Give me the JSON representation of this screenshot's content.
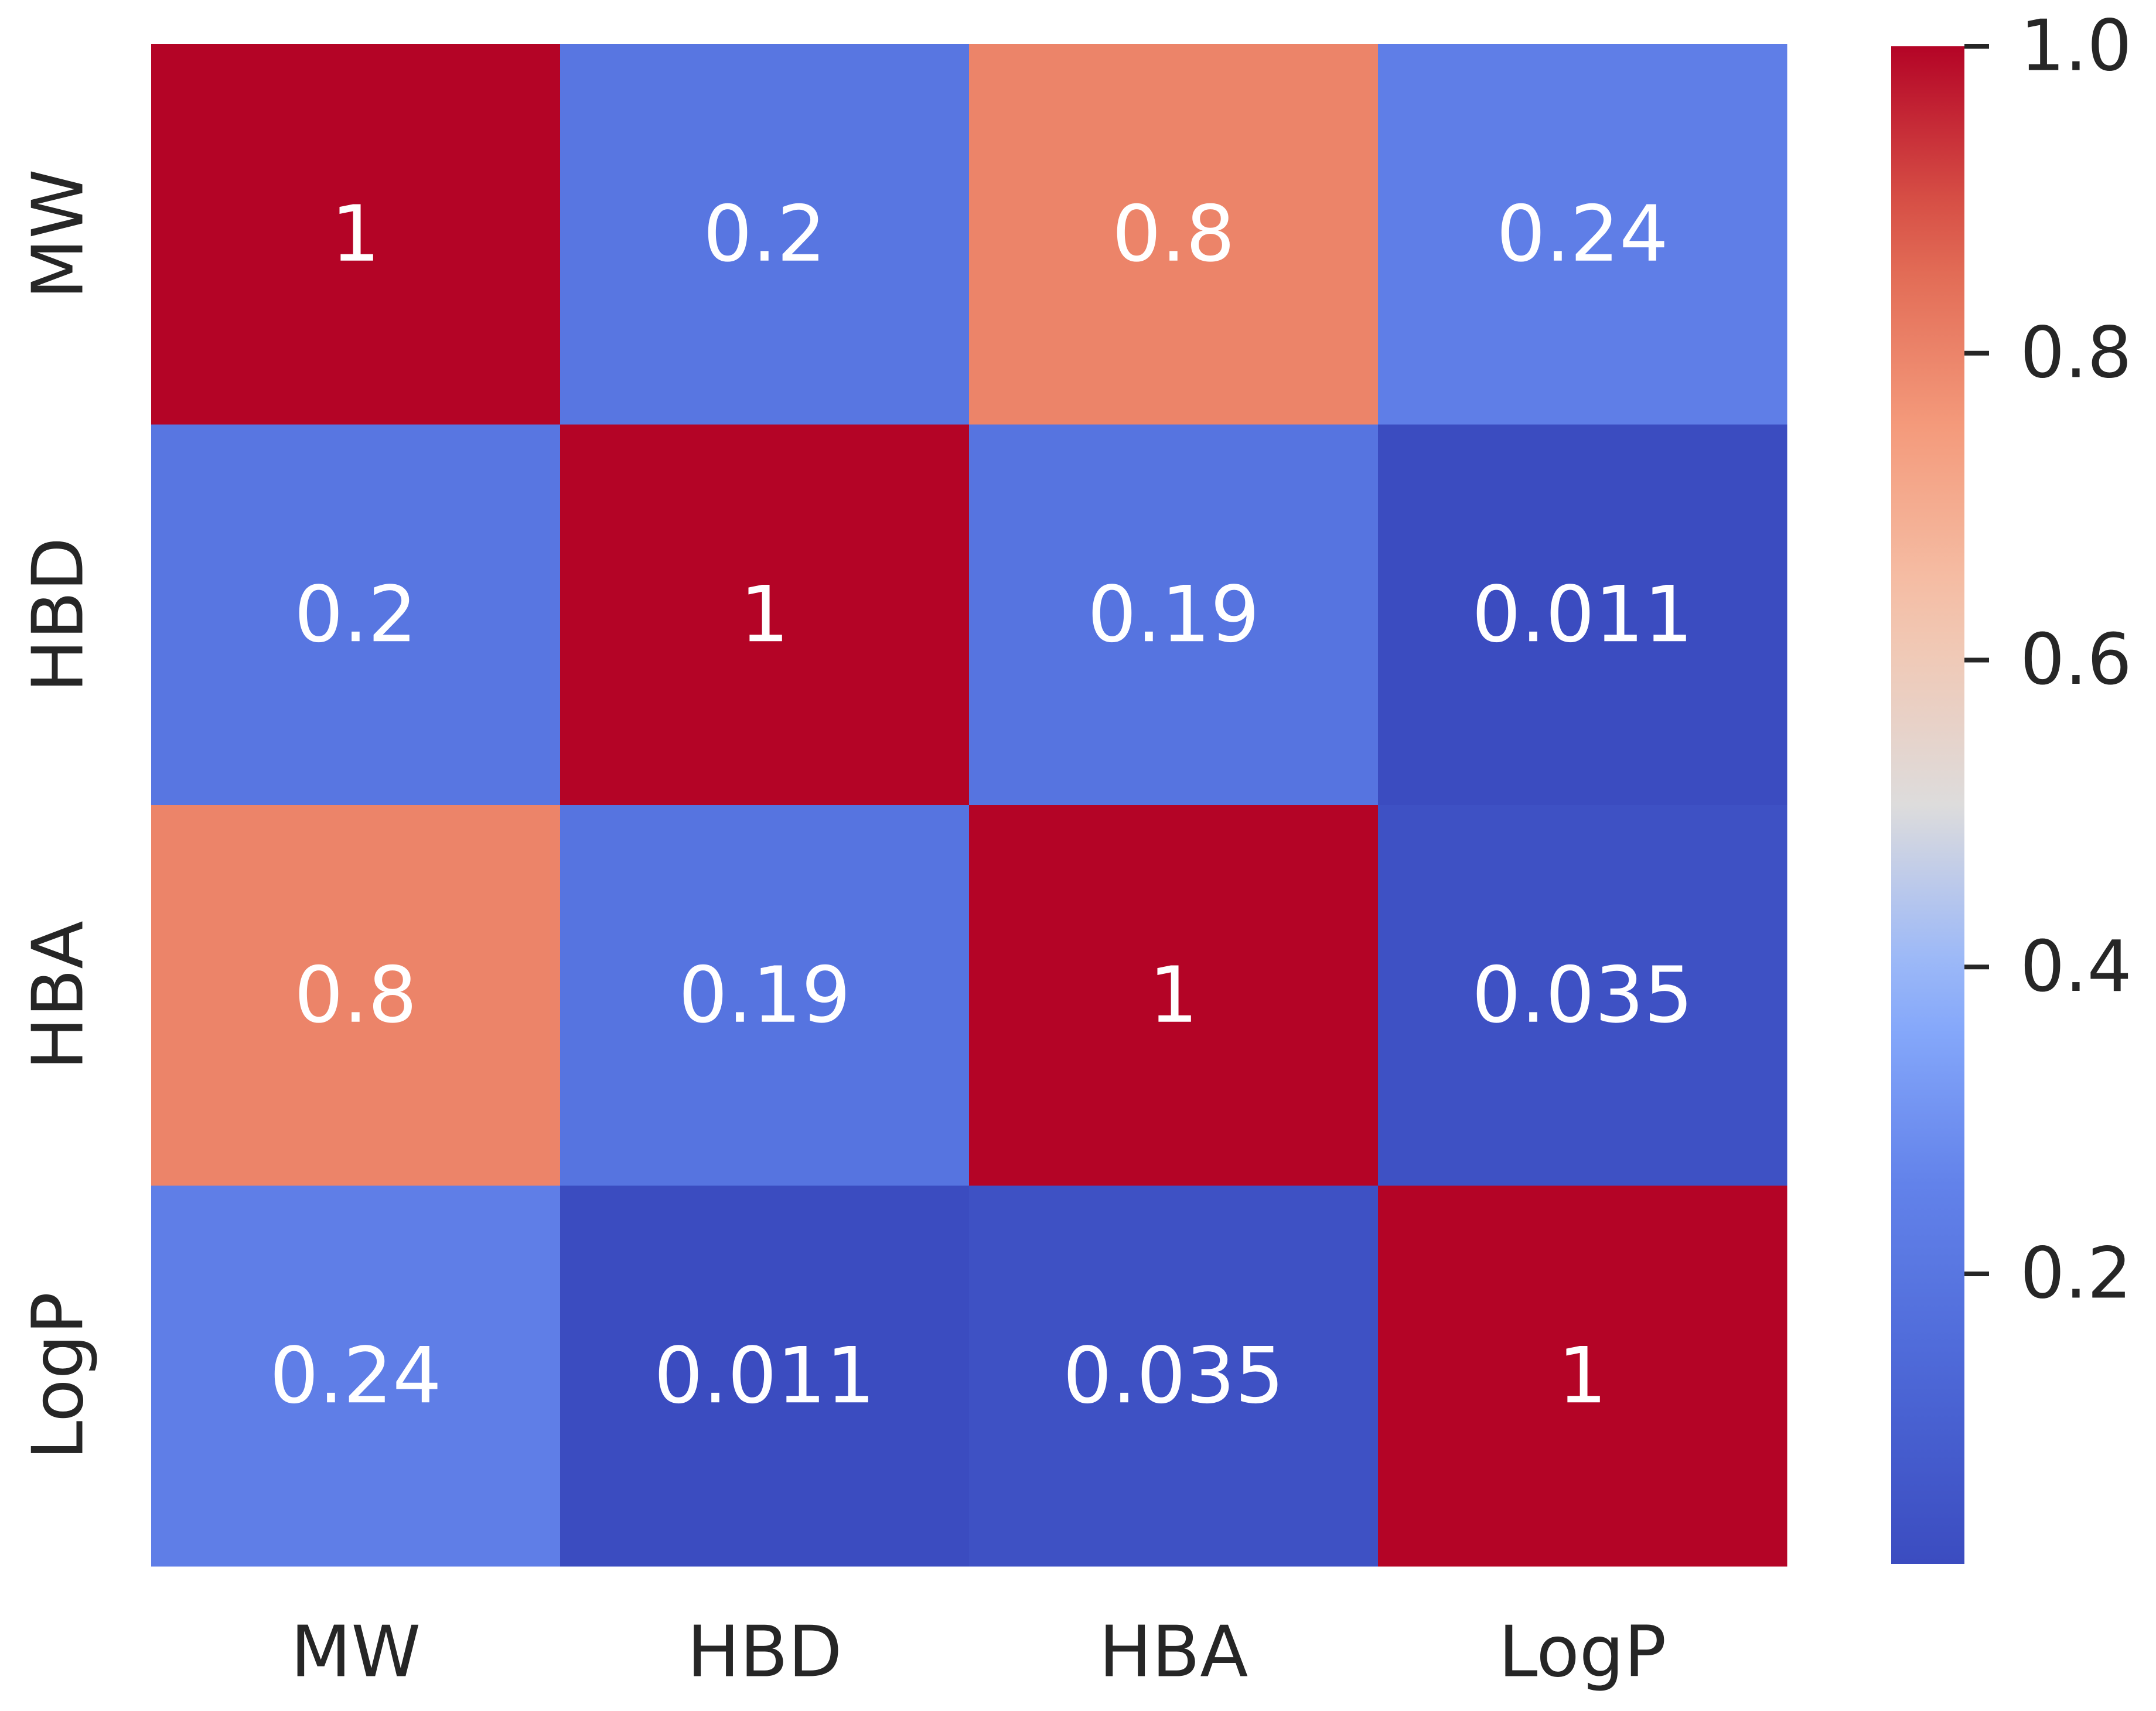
{
  "chart_data": {
    "type": "heatmap",
    "title": "",
    "xlabel": "",
    "ylabel": "",
    "x_categories": [
      "MW",
      "HBD",
      "HBA",
      "LogP"
    ],
    "y_categories": [
      "MW",
      "HBD",
      "HBA",
      "LogP"
    ],
    "values": [
      [
        1,
        0.2,
        0.8,
        0.24
      ],
      [
        0.2,
        1,
        0.19,
        0.011
      ],
      [
        0.8,
        0.19,
        1,
        0.035
      ],
      [
        0.24,
        0.011,
        0.035,
        1
      ]
    ],
    "annotations": [
      [
        "1",
        "0.2",
        "0.8",
        "0.24"
      ],
      [
        "0.2",
        "1",
        "0.19",
        "0.011"
      ],
      [
        "0.8",
        "0.19",
        "1",
        "0.035"
      ],
      [
        "0.24",
        "0.011",
        "0.035",
        "1"
      ]
    ],
    "colormap": "coolwarm",
    "colorbar": {
      "vmin": 0.011,
      "vmax": 1.0,
      "ticks": [
        0.2,
        0.4,
        0.6,
        0.8,
        1.0
      ],
      "tick_labels": [
        "0.2",
        "0.4",
        "0.6",
        "0.8",
        "1.0"
      ],
      "placement": "right"
    },
    "colors": {
      "low": "#3b4cc0",
      "mid": "#dddddd",
      "high": "#b40426",
      "annotation_text": "#ffffff",
      "tick_text": "#262626"
    }
  }
}
